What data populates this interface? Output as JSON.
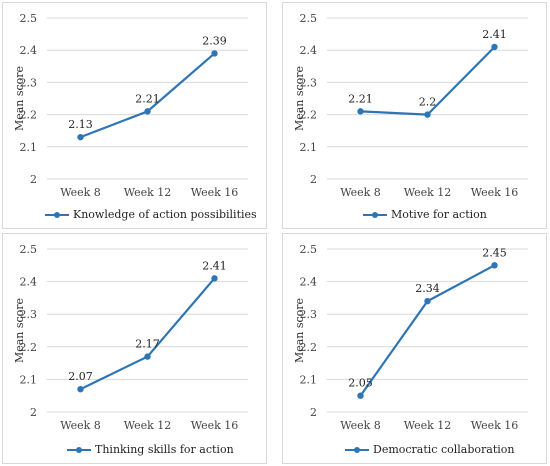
{
  "style": {
    "line_color": "#2e75b6",
    "grid_color": "#d9d9d9"
  },
  "chart_data": [
    {
      "type": "line",
      "categories": [
        "Week 8",
        "Week 12",
        "Week 16"
      ],
      "series": [
        {
          "name": "Knowledge of action possibilities",
          "values": [
            2.13,
            2.21,
            2.39
          ]
        }
      ],
      "ylabel": "Mean score",
      "ylim": [
        2,
        2.5
      ],
      "yticks": [
        "2",
        "2.1",
        "2.2",
        "2.3",
        "2.4",
        "2.5"
      ],
      "data_labels": [
        "2.13",
        "2.21",
        "2.39"
      ],
      "grid": true,
      "legend_position": "bottom"
    },
    {
      "type": "line",
      "categories": [
        "Week 8",
        "Week 12",
        "Week 16"
      ],
      "series": [
        {
          "name": "Motive for action",
          "values": [
            2.21,
            2.2,
            2.41
          ]
        }
      ],
      "ylabel": "Mean score",
      "ylim": [
        2,
        2.5
      ],
      "yticks": [
        "2",
        "2.1",
        "2.2",
        "2.3",
        "2.4",
        "2.5"
      ],
      "data_labels": [
        "2.21",
        "2.2",
        "2.41"
      ],
      "grid": true,
      "legend_position": "bottom"
    },
    {
      "type": "line",
      "categories": [
        "Week 8",
        "Week 12",
        "Week 16"
      ],
      "series": [
        {
          "name": "Thinking skills for action",
          "values": [
            2.07,
            2.17,
            2.41
          ]
        }
      ],
      "ylabel": "Mean score",
      "ylim": [
        2,
        2.5
      ],
      "yticks": [
        "2",
        "2.1",
        "2.2",
        "2.3",
        "2.4",
        "2.5"
      ],
      "data_labels": [
        "2.07",
        "2.17",
        "2.41"
      ],
      "grid": true,
      "legend_position": "bottom"
    },
    {
      "type": "line",
      "categories": [
        "Week 8",
        "Week 12",
        "Week 16"
      ],
      "series": [
        {
          "name": "Democratic collaboration",
          "values": [
            2.05,
            2.34,
            2.45
          ]
        }
      ],
      "ylabel": "Mean score",
      "ylim": [
        2,
        2.5
      ],
      "yticks": [
        "2",
        "2.1",
        "2.2",
        "2.3",
        "2.4",
        "2.5"
      ],
      "data_labels": [
        "2.05",
        "2.34",
        "2.45"
      ],
      "grid": true,
      "legend_position": "bottom"
    }
  ]
}
